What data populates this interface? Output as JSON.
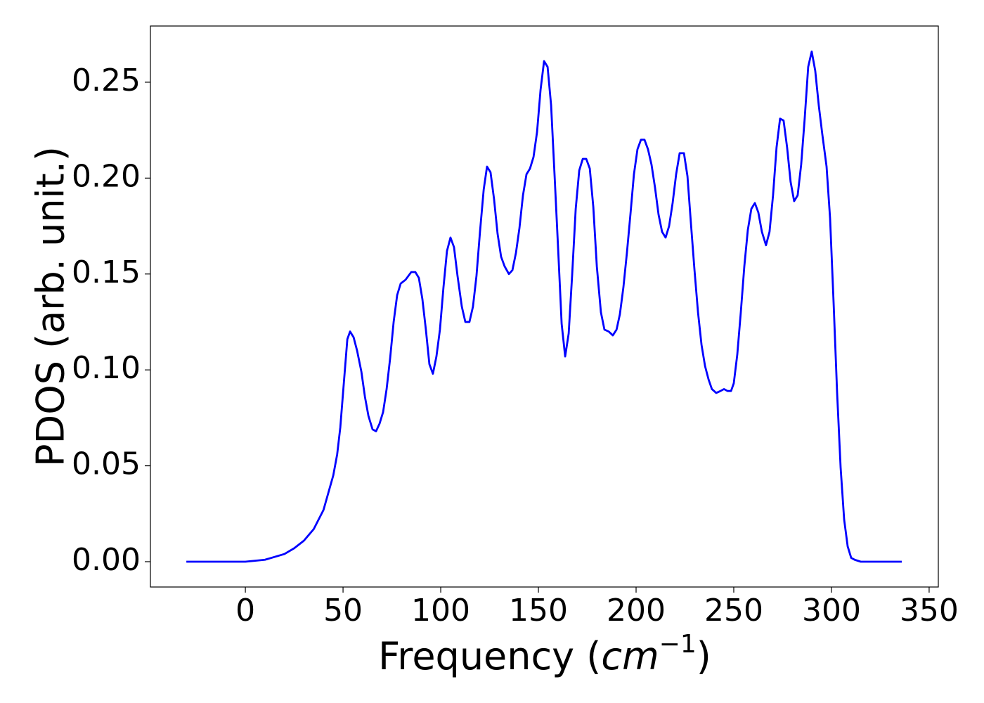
{
  "chart_data": {
    "type": "line",
    "x_label": [
      "Frequency (",
      "cm",
      "−1",
      ")"
    ],
    "y_label": "PDOS (arb. unit.)",
    "xlim": [
      -48.6,
      354.7
    ],
    "ylim": [
      -0.0132,
      0.2793
    ],
    "xticks": [
      0,
      50,
      100,
      150,
      200,
      250,
      300,
      350
    ],
    "yticks": [
      {
        "value": 0,
        "label": "0.00"
      },
      0.05,
      {
        "value": 0.1,
        "label": "0.10"
      },
      0.15,
      {
        "value": 0.2,
        "label": "0.20"
      },
      0.25
    ],
    "color": "#0000ff",
    "x": [
      -30.2,
      0,
      10,
      20,
      25,
      30,
      35,
      40,
      45,
      47,
      48.6,
      50,
      52.2,
      53.6,
      55.4,
      57.2,
      59.4,
      61.2,
      63,
      65.1,
      66.9,
      68.7,
      70.5,
      72.3,
      74.1,
      75.9,
      77.7,
      79.5,
      82,
      84.9,
      87,
      88.8,
      90.6,
      92.4,
      94.2,
      96,
      97.8,
      99.6,
      101.4,
      103.2,
      105,
      106.8,
      108.6,
      110.8,
      112.6,
      114.7,
      116.5,
      118.3,
      120.1,
      122,
      123.7,
      125.5,
      127.3,
      129.1,
      130.9,
      132.7,
      134.9,
      136.7,
      138.5,
      140.3,
      142.1,
      143.9,
      145.7,
      147.5,
      149.3,
      151.1,
      152.9,
      154.7,
      156.5,
      158.3,
      160.1,
      161.9,
      163.7,
      165.5,
      167.3,
      169.1,
      170.9,
      172.7,
      174.5,
      176.3,
      178.1,
      179.9,
      182,
      183.8,
      186,
      188.1,
      190,
      191.7,
      193.5,
      195.3,
      197.1,
      198.9,
      200.7,
      202.5,
      204.3,
      206.1,
      207.9,
      209.7,
      211.5,
      213.3,
      215.1,
      216.9,
      218.7,
      220.5,
      222.3,
      224.5,
      226.3,
      228.1,
      229.9,
      231.7,
      233.5,
      235.3,
      237.1,
      238.8,
      241,
      243.2,
      245,
      246.8,
      248.6,
      250,
      251.8,
      253.6,
      255.4,
      257.2,
      259,
      260.8,
      262.6,
      264.4,
      266.5,
      268.3,
      270.1,
      271.9,
      273.7,
      275.5,
      277.3,
      279.1,
      280.9,
      282.7,
      284.5,
      286.3,
      288.1,
      289.9,
      291.7,
      293.5,
      295.3,
      297.5,
      299.3,
      301.1,
      302.9,
      304.7,
      306.5,
      308.3,
      310.1,
      311.9,
      315,
      336
    ],
    "values": [
      0,
      0,
      0.001,
      0.004,
      0.007,
      0.011,
      0.017,
      0.027,
      0.045,
      0.056,
      0.07,
      0.088,
      0.116,
      0.12,
      0.117,
      0.11,
      0.099,
      0.086,
      0.076,
      0.069,
      0.068,
      0.072,
      0.078,
      0.09,
      0.106,
      0.125,
      0.139,
      0.145,
      0.147,
      0.151,
      0.151,
      0.148,
      0.137,
      0.121,
      0.103,
      0.098,
      0.107,
      0.121,
      0.143,
      0.162,
      0.169,
      0.164,
      0.149,
      0.133,
      0.125,
      0.125,
      0.133,
      0.149,
      0.172,
      0.194,
      0.206,
      0.203,
      0.189,
      0.171,
      0.159,
      0.154,
      0.15,
      0.152,
      0.161,
      0.174,
      0.191,
      0.202,
      0.205,
      0.211,
      0.224,
      0.246,
      0.261,
      0.258,
      0.238,
      0.201,
      0.163,
      0.124,
      0.107,
      0.119,
      0.15,
      0.184,
      0.204,
      0.21,
      0.21,
      0.205,
      0.185,
      0.154,
      0.13,
      0.121,
      0.12,
      0.118,
      0.121,
      0.129,
      0.143,
      0.161,
      0.181,
      0.202,
      0.215,
      0.22,
      0.22,
      0.215,
      0.207,
      0.195,
      0.181,
      0.172,
      0.169,
      0.175,
      0.187,
      0.202,
      0.213,
      0.213,
      0.201,
      0.176,
      0.152,
      0.13,
      0.113,
      0.102,
      0.095,
      0.09,
      0.088,
      0.089,
      0.09,
      0.089,
      0.089,
      0.093,
      0.108,
      0.13,
      0.154,
      0.173,
      0.184,
      0.187,
      0.182,
      0.172,
      0.165,
      0.172,
      0.191,
      0.216,
      0.231,
      0.23,
      0.216,
      0.198,
      0.188,
      0.191,
      0.207,
      0.231,
      0.258,
      0.266,
      0.256,
      0.238,
      0.223,
      0.206,
      0.179,
      0.135,
      0.088,
      0.049,
      0.022,
      0.008,
      0.002,
      0.001,
      0,
      0
    ]
  }
}
